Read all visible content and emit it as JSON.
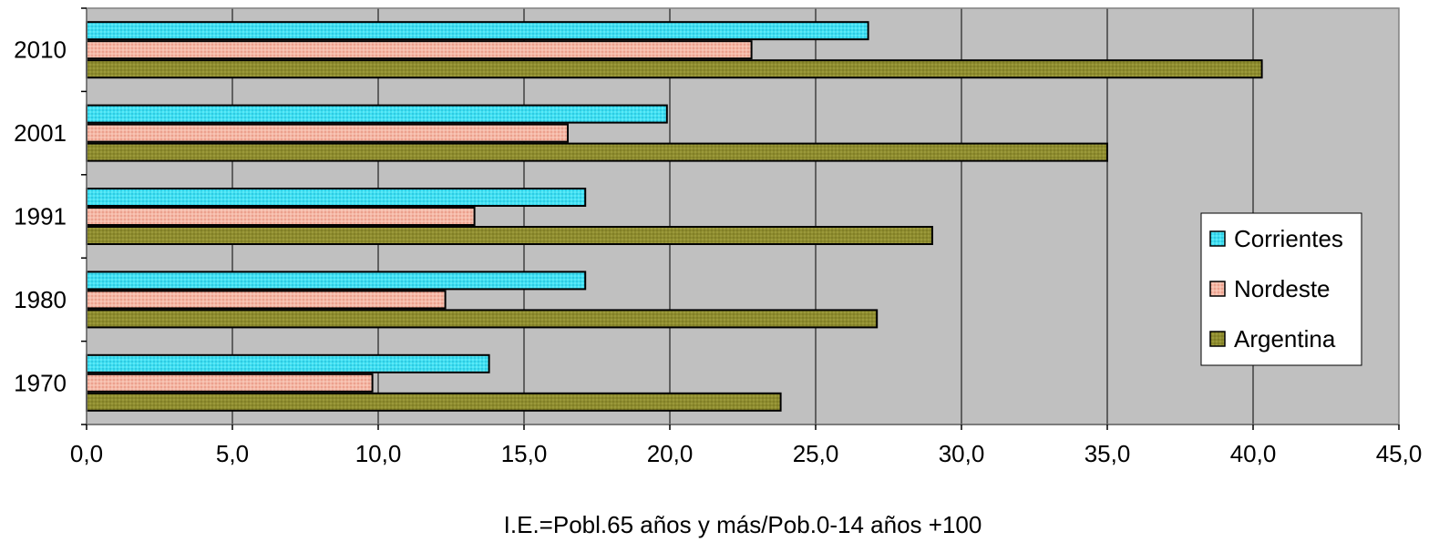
{
  "chart_data": {
    "type": "bar",
    "orientation": "horizontal",
    "title": "",
    "xlabel": "I.E.=Pobl.65 años y más/Pob.0-14 años +100",
    "ylabel": "",
    "xlim": [
      0,
      45
    ],
    "x_ticks": [
      "0,0",
      "5,0",
      "10,0",
      "15,0",
      "20,0",
      "25,0",
      "30,0",
      "35,0",
      "40,0",
      "45,0"
    ],
    "categories": [
      "1970",
      "1980",
      "1991",
      "2001",
      "2010"
    ],
    "series": [
      {
        "name": "Corrientes",
        "values": [
          13.8,
          17.1,
          17.1,
          19.9,
          26.8
        ],
        "color": "#3fe0f2"
      },
      {
        "name": "Nordeste",
        "values": [
          9.8,
          12.3,
          13.3,
          16.5,
          22.8
        ],
        "color": "#f4b8a6"
      },
      {
        "name": "Argentina",
        "values": [
          23.8,
          27.1,
          29.0,
          35.0,
          40.3
        ],
        "color": "#8e8c2e"
      }
    ],
    "grid": "vertical",
    "plot_background": "#c0c0c0",
    "legend_position": "right"
  }
}
